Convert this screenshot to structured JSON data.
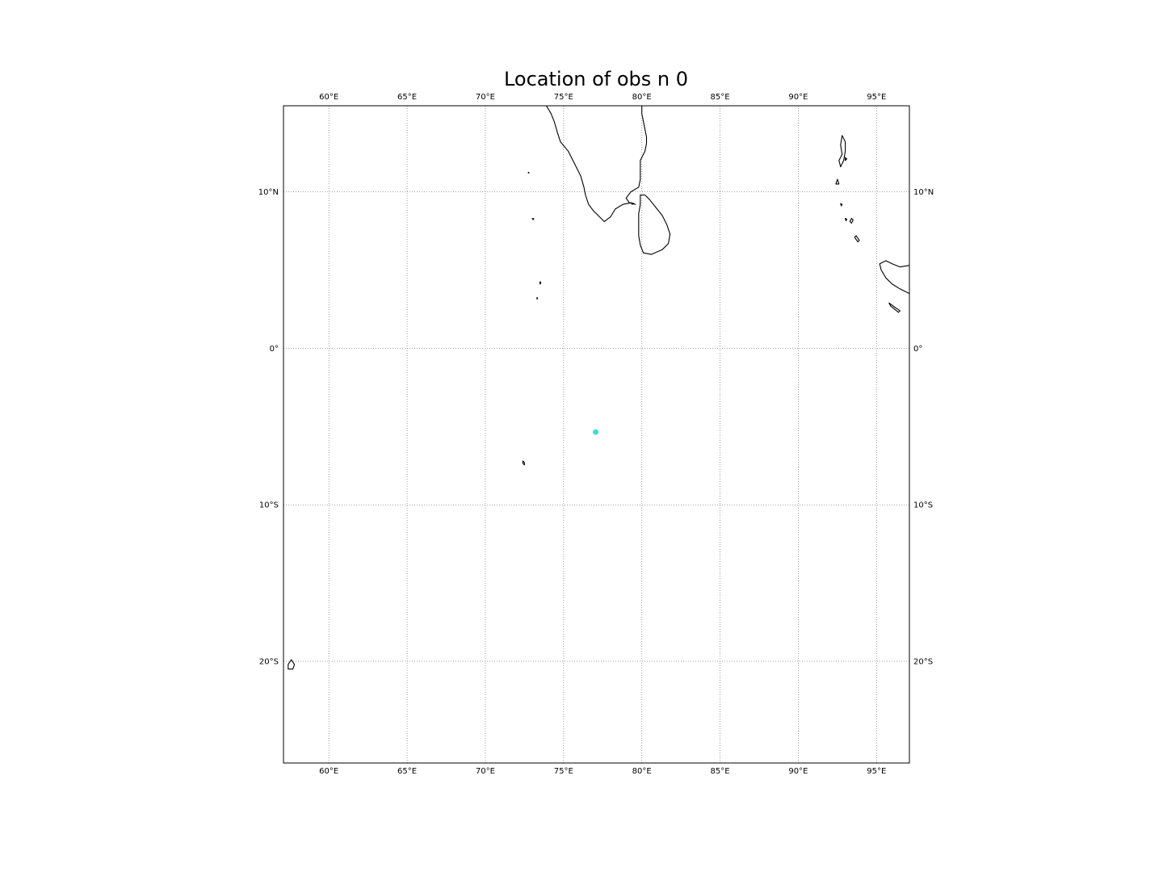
{
  "title": "Location of obs n 0",
  "map": {
    "projection": "equirectangular",
    "lon_range": [
      57.1,
      97.1
    ],
    "lat_range": [
      -26.5,
      15.5
    ],
    "gridlines": true,
    "frame_color": "#000000",
    "coastline_color": "#000000",
    "gridline_color": "#888888"
  },
  "axes": {
    "lon_ticks": [
      {
        "value": 60,
        "label": "60°E"
      },
      {
        "value": 65,
        "label": "65°E"
      },
      {
        "value": 70,
        "label": "70°E"
      },
      {
        "value": 75,
        "label": "75°E"
      },
      {
        "value": 80,
        "label": "80°E"
      },
      {
        "value": 85,
        "label": "85°E"
      },
      {
        "value": 90,
        "label": "90°E"
      },
      {
        "value": 95,
        "label": "95°E"
      }
    ],
    "lat_ticks": [
      {
        "value": 10,
        "label": "10°N"
      },
      {
        "value": 0,
        "label": "0°"
      },
      {
        "value": -10,
        "label": "10°S"
      },
      {
        "value": -20,
        "label": "20°S"
      }
    ]
  },
  "chart_data": {
    "type": "scatter",
    "title": "Location of obs n 0",
    "x": [
      77.05
    ],
    "y": [
      -5.35
    ],
    "marker_color": "#40e0d0",
    "xlim": [
      57.1,
      97.1
    ],
    "ylim": [
      -26.5,
      15.5
    ],
    "grid": true
  },
  "coastlines": [
    {
      "name": "india-south",
      "closed": false,
      "points": [
        [
          73.9,
          15.5
        ],
        [
          74.2,
          15.0
        ],
        [
          74.4,
          14.5
        ],
        [
          74.6,
          13.8
        ],
        [
          74.8,
          13.2
        ],
        [
          75.3,
          12.6
        ],
        [
          75.6,
          12.0
        ],
        [
          75.9,
          11.4
        ],
        [
          76.1,
          11.0
        ],
        [
          76.3,
          10.3
        ],
        [
          76.4,
          9.8
        ],
        [
          76.6,
          9.2
        ],
        [
          76.9,
          8.8
        ],
        [
          77.3,
          8.4
        ],
        [
          77.6,
          8.1
        ],
        [
          78.0,
          8.4
        ],
        [
          78.3,
          8.9
        ],
        [
          78.8,
          9.2
        ],
        [
          79.3,
          9.3
        ],
        [
          79.6,
          9.2
        ],
        [
          79.2,
          9.3
        ],
        [
          79.0,
          9.6
        ],
        [
          79.3,
          10.0
        ],
        [
          79.8,
          10.3
        ],
        [
          79.9,
          10.8
        ],
        [
          79.9,
          11.2
        ],
        [
          79.9,
          11.6
        ],
        [
          79.9,
          12.0
        ],
        [
          80.2,
          12.6
        ],
        [
          80.3,
          13.1
        ],
        [
          80.3,
          13.5
        ],
        [
          80.2,
          14.0
        ],
        [
          80.1,
          14.5
        ],
        [
          80.0,
          15.0
        ],
        [
          80.0,
          15.5
        ]
      ]
    },
    {
      "name": "sri-lanka",
      "closed": true,
      "points": [
        [
          79.9,
          9.8
        ],
        [
          80.2,
          9.8
        ],
        [
          80.5,
          9.5
        ],
        [
          80.9,
          9.0
        ],
        [
          81.3,
          8.5
        ],
        [
          81.6,
          7.9
        ],
        [
          81.8,
          7.3
        ],
        [
          81.7,
          6.7
        ],
        [
          81.3,
          6.3
        ],
        [
          80.6,
          6.0
        ],
        [
          80.1,
          6.1
        ],
        [
          79.9,
          6.6
        ],
        [
          79.8,
          7.2
        ],
        [
          79.8,
          7.9
        ],
        [
          79.8,
          8.6
        ],
        [
          79.9,
          9.2
        ],
        [
          79.9,
          9.8
        ]
      ]
    },
    {
      "name": "sumatra",
      "closed": false,
      "points": [
        [
          97.1,
          5.3
        ],
        [
          96.5,
          5.2
        ],
        [
          96.0,
          5.4
        ],
        [
          95.6,
          5.6
        ],
        [
          95.2,
          5.4
        ],
        [
          95.3,
          5.0
        ],
        [
          95.6,
          4.5
        ],
        [
          96.0,
          4.1
        ],
        [
          96.5,
          3.8
        ],
        [
          97.1,
          3.5
        ]
      ]
    },
    {
      "name": "simeulue",
      "closed": true,
      "points": [
        [
          95.8,
          2.9
        ],
        [
          96.2,
          2.6
        ],
        [
          96.5,
          2.4
        ],
        [
          96.4,
          2.3
        ],
        [
          95.9,
          2.7
        ],
        [
          95.8,
          2.9
        ]
      ]
    },
    {
      "name": "andaman",
      "closed": true,
      "points": [
        [
          92.8,
          13.6
        ],
        [
          93.0,
          13.2
        ],
        [
          93.0,
          12.6
        ],
        [
          92.9,
          12.0
        ],
        [
          92.7,
          11.6
        ],
        [
          92.6,
          12.0
        ],
        [
          92.8,
          12.4
        ],
        [
          92.7,
          13.0
        ],
        [
          92.8,
          13.6
        ]
      ]
    },
    {
      "name": "little-andaman",
      "closed": true,
      "points": [
        [
          92.5,
          10.8
        ],
        [
          92.6,
          10.5
        ],
        [
          92.4,
          10.5
        ],
        [
          92.5,
          10.8
        ]
      ]
    },
    {
      "name": "great-nicobar",
      "closed": true,
      "points": [
        [
          93.7,
          7.2
        ],
        [
          93.9,
          6.9
        ],
        [
          93.8,
          6.8
        ],
        [
          93.6,
          7.1
        ],
        [
          93.7,
          7.2
        ]
      ]
    },
    {
      "name": "mauritius",
      "closed": true,
      "points": [
        [
          57.6,
          -19.9
        ],
        [
          57.8,
          -20.2
        ],
        [
          57.7,
          -20.5
        ],
        [
          57.4,
          -20.5
        ],
        [
          57.4,
          -20.2
        ],
        [
          57.6,
          -19.9
        ]
      ]
    },
    {
      "name": "diego-garcia",
      "closed": true,
      "points": [
        [
          72.4,
          -7.2
        ],
        [
          72.5,
          -7.3
        ],
        [
          72.5,
          -7.45
        ],
        [
          72.4,
          -7.35
        ],
        [
          72.4,
          -7.2
        ]
      ]
    },
    {
      "name": "lakshadweep-1",
      "closed": true,
      "points": [
        [
          72.75,
          11.25
        ],
        [
          72.8,
          11.22
        ],
        [
          72.75,
          11.2
        ],
        [
          72.75,
          11.25
        ]
      ]
    },
    {
      "name": "lakshadweep-2",
      "closed": true,
      "points": [
        [
          73.0,
          8.3
        ],
        [
          73.1,
          8.28
        ],
        [
          73.05,
          8.22
        ],
        [
          73.0,
          8.3
        ]
      ]
    },
    {
      "name": "maldives-1",
      "closed": true,
      "points": [
        [
          73.5,
          4.25
        ],
        [
          73.55,
          4.2
        ],
        [
          73.5,
          4.1
        ],
        [
          73.48,
          4.2
        ],
        [
          73.5,
          4.25
        ]
      ]
    },
    {
      "name": "maldives-2",
      "closed": true,
      "points": [
        [
          73.3,
          3.25
        ],
        [
          73.35,
          3.2
        ],
        [
          73.3,
          3.15
        ],
        [
          73.3,
          3.25
        ]
      ]
    },
    {
      "name": "car-nicobar",
      "closed": true,
      "points": [
        [
          92.7,
          9.25
        ],
        [
          92.8,
          9.2
        ],
        [
          92.75,
          9.1
        ],
        [
          92.7,
          9.25
        ]
      ]
    },
    {
      "name": "nicobar-mid-1",
      "closed": true,
      "points": [
        [
          93.0,
          8.3
        ],
        [
          93.1,
          8.25
        ],
        [
          93.05,
          8.15
        ],
        [
          93.0,
          8.3
        ]
      ]
    },
    {
      "name": "nicobar-mid-2",
      "closed": true,
      "points": [
        [
          93.4,
          8.3
        ],
        [
          93.5,
          8.2
        ],
        [
          93.4,
          8.0
        ],
        [
          93.3,
          8.1
        ],
        [
          93.4,
          8.3
        ]
      ]
    },
    {
      "name": "ritchie",
      "closed": true,
      "points": [
        [
          93.0,
          12.2
        ],
        [
          93.1,
          12.1
        ],
        [
          93.0,
          12.0
        ],
        [
          93.0,
          12.2
        ]
      ]
    },
    {
      "name": "rameswaram",
      "closed": true,
      "points": [
        [
          79.3,
          9.3
        ],
        [
          79.5,
          9.25
        ],
        [
          79.4,
          9.2
        ],
        [
          79.3,
          9.3
        ]
      ]
    }
  ]
}
